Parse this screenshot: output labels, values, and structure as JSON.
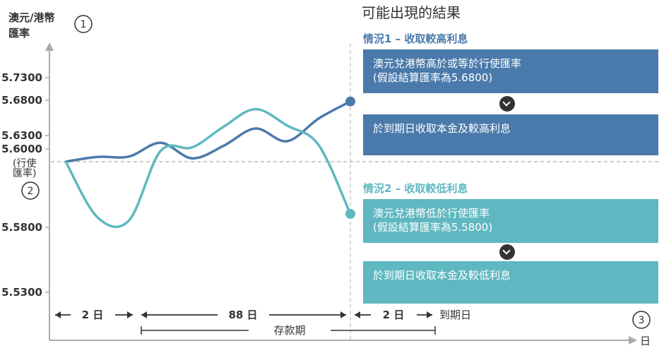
{
  "chart_data": {
    "type": "line",
    "ylabel": "澳元/港幣\n匯率",
    "xlabel": "日",
    "y_ticks": [
      "5.7300",
      "5.6800",
      "5.6300",
      "5.6000",
      "5.5800",
      "5.5300"
    ],
    "strike_label": "(行使\n匯率)",
    "markers": {
      "m1": "1",
      "m2": "2",
      "m3": "3"
    },
    "series": [
      {
        "color": "#4a7aab",
        "x": [
          0,
          2,
          4,
          6,
          8,
          10,
          12,
          14,
          16,
          18
        ],
        "y": [
          5.6,
          5.6055,
          5.6059,
          5.6217,
          5.6038,
          5.6184,
          5.64,
          5.6235,
          5.6542,
          5.6783
        ]
      },
      {
        "color": "#5fb8c1",
        "x": [
          0,
          2,
          4,
          6,
          8,
          10,
          12,
          14,
          16,
          18
        ],
        "y": [
          5.6,
          5.5831,
          5.5821,
          5.6123,
          5.6164,
          5.6428,
          5.6674,
          5.6442,
          5.619,
          5.5841
        ]
      }
    ],
    "timeline": {
      "seg1": "2 日",
      "seg2": "88 日",
      "seg3": "2 日",
      "end_label": "到期日",
      "deposit_period": "存款期"
    }
  },
  "panel": {
    "title": "可能出現的結果",
    "scenario1": {
      "heading": "情況1 – 收取較高利息",
      "line1": "澳元兌港幣高於或等於行使匯率",
      "line2": "(假設結算匯率為5.6800)",
      "result": "於到期日收取本金及較高利息",
      "color": "#4a7aab"
    },
    "scenario2": {
      "heading": "情況2 – 收取較低利息",
      "line1": "澳元兌港幣低於行使匯率",
      "line2": "(假設結算匯率為5.5800)",
      "result": "於到期日收取本金及較低利息",
      "color": "#5fb8c1"
    }
  }
}
